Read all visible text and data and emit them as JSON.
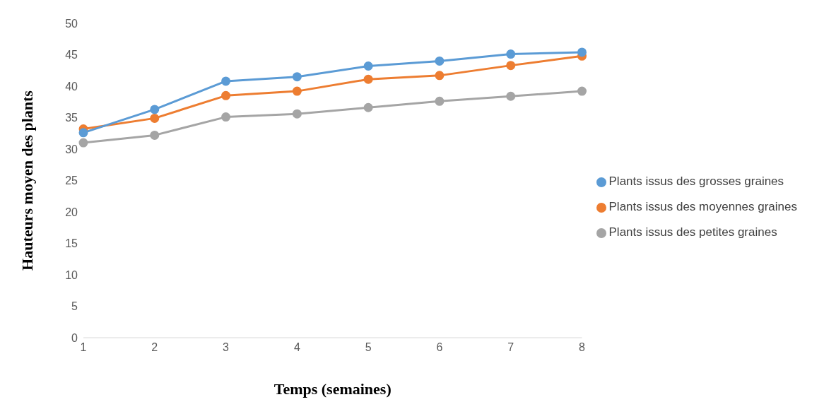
{
  "chart_data": {
    "type": "line",
    "xlabel": "Temps (semaines)",
    "ylabel": "Hauteurs moyen des plants",
    "categories": [
      "1",
      "2",
      "3",
      "4",
      "5",
      "6",
      "7",
      "8"
    ],
    "series": [
      {
        "name": "Plants issus des grosses graines",
        "color": "#5b9bd5",
        "values": [
          32.6,
          36.3,
          40.8,
          41.5,
          43.2,
          44.0,
          45.1,
          45.4
        ]
      },
      {
        "name": "Plants issus des moyennes graines",
        "color": "#ed7d31",
        "values": [
          33.2,
          34.9,
          38.5,
          39.2,
          41.1,
          41.7,
          43.3,
          44.8
        ]
      },
      {
        "name": "Plants issus des petites graines",
        "color": "#a5a5a5",
        "values": [
          31.0,
          32.2,
          35.1,
          35.6,
          36.6,
          37.6,
          38.4,
          39.2
        ]
      }
    ],
    "ylim": [
      0,
      50
    ],
    "yticks": [
      0,
      5,
      10,
      15,
      20,
      25,
      30,
      35,
      40,
      45,
      50
    ],
    "grid": false,
    "legend": "right",
    "marker": "circle",
    "line_style": "solid"
  }
}
